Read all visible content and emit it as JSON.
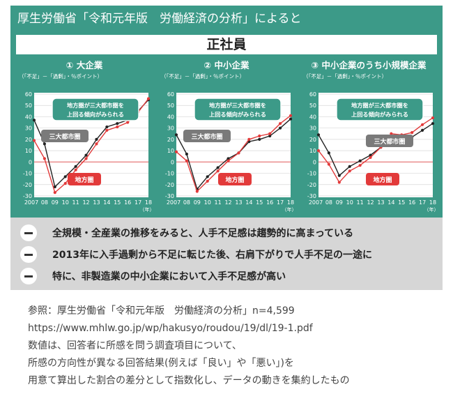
{
  "header": {
    "title": "厚生労働省「令和元年版　労働経済の分析」によると"
  },
  "band": {
    "title": "正社員"
  },
  "colors": {
    "teal": "#3c9a88",
    "black_series": "#222222",
    "red_series": "#e23a3a",
    "zero_line": "#e46a6a",
    "grid": "#d8d8d8"
  },
  "chart_data": [
    {
      "type": "line",
      "title": "① 大企業",
      "ylabel": "（「不足」－「過剰」・％ポイント）",
      "xlabel": "（年）",
      "categories": [
        "2007",
        "08",
        "09",
        "10",
        "11",
        "12",
        "13",
        "14",
        "15",
        "16",
        "17",
        "18"
      ],
      "yticks": [
        -30,
        -20,
        -10,
        0,
        10,
        20,
        30,
        40,
        50,
        60
      ],
      "ylim": [
        -30,
        60
      ],
      "grid": true,
      "series": [
        {
          "name": "三大都市圏",
          "color": "#222222",
          "values": [
            37,
            16,
            -22,
            -13,
            -4,
            6,
            20,
            31,
            34,
            37,
            45,
            55
          ]
        },
        {
          "name": "地方圏",
          "color": "#e23a3a",
          "values": [
            19,
            3,
            -27,
            -19,
            -7,
            3,
            16,
            28,
            31,
            35,
            44,
            56
          ]
        }
      ],
      "annotation": {
        "lines": [
          "地方圏が三大都市圏を",
          "上回る傾向がみられる"
        ]
      }
    },
    {
      "type": "line",
      "title": "② 中小企業",
      "ylabel": "（「不足」－「過剰」・％ポイント）",
      "xlabel": "（年）",
      "categories": [
        "2007",
        "08",
        "09",
        "10",
        "11",
        "12",
        "13",
        "14",
        "15",
        "16",
        "17",
        "18"
      ],
      "yticks": [
        -30,
        -20,
        -10,
        0,
        10,
        20,
        30,
        40,
        50,
        60
      ],
      "ylim": [
        -30,
        60
      ],
      "grid": true,
      "series": [
        {
          "name": "三大都市圏",
          "color": "#222222",
          "values": [
            24,
            7,
            -24,
            -13,
            -5,
            3,
            8,
            18,
            20,
            23,
            30,
            38
          ]
        },
        {
          "name": "地方圏",
          "color": "#e23a3a",
          "values": [
            9,
            1,
            -26,
            -17,
            -8,
            1,
            8,
            20,
            23,
            25,
            34,
            41
          ]
        }
      ],
      "annotation": {
        "lines": [
          "地方圏が三大都市圏を",
          "上回る傾向がみられる"
        ]
      }
    },
    {
      "type": "line",
      "title": "③ 中小企業のうち小規模企業",
      "ylabel": "（「不足」－「過剰」・％ポイント）",
      "xlabel": "（年）",
      "categories": [
        "2007",
        "08",
        "09",
        "10",
        "11",
        "12",
        "13",
        "14",
        "15",
        "16",
        "17",
        "18"
      ],
      "yticks": [
        -30,
        -20,
        -10,
        0,
        10,
        20,
        30,
        40,
        50,
        60
      ],
      "ylim": [
        -30,
        60
      ],
      "grid": true,
      "series": [
        {
          "name": "三大都市圏",
          "color": "#222222",
          "values": [
            24,
            8,
            -12,
            -4,
            1,
            6,
            13,
            17,
            20,
            22,
            28,
            34
          ]
        },
        {
          "name": "地方圏",
          "color": "#e23a3a",
          "values": [
            10,
            -2,
            -18,
            -8,
            -3,
            4,
            13,
            25,
            24,
            26,
            33,
            39
          ]
        }
      ],
      "annotation": {
        "lines": [
          "地方圏が三大都市圏を",
          "上回る傾向がみられる"
        ]
      }
    }
  ],
  "findings": [
    "全規模・全産業の推移をみると、人手不足感は趨勢的に高まっている",
    "2013年に入手過剰から不足に転じた後、右肩下がりで人手不足の一途に",
    "特に、非製造業の中小企業において入手不足感が高い"
  ],
  "notes": [
    "参照：厚生労働省「令和元年版　労働経済の分析」n=4,599",
    "https://www.mhlw.go.jp/wp/hakusyo/roudou/19/dl/19-1.pdf",
    "数値は、回答者に所感を問う調査項目について、",
    "所感の方向性が異なる回答結果(例えば「良い」や「悪い」)を",
    "用意て算出した割合の差分として指数化し、データの動きを集約したもの"
  ]
}
